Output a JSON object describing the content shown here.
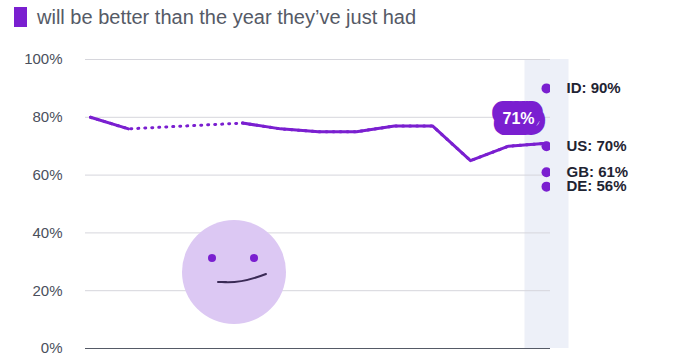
{
  "chart_data": {
    "type": "line",
    "subtitle": "will be better than the year they’ve just had",
    "categories": [
      null,
      null,
      null,
      null,
      null,
      null,
      null,
      null,
      null,
      null,
      null,
      null,
      null
    ],
    "values": [
      80,
      76,
      null,
      null,
      78,
      76,
      75,
      75,
      77,
      77,
      65,
      70,
      71
    ],
    "color": "#7a1fd0",
    "ylim": [
      0,
      100
    ],
    "yticks": [
      {
        "value": 0,
        "label": "0%"
      },
      {
        "value": 20,
        "label": "20%"
      },
      {
        "value": 40,
        "label": "40%"
      },
      {
        "value": 60,
        "label": "60%"
      },
      {
        "value": 80,
        "label": "80%"
      },
      {
        "value": 100,
        "label": "100%"
      }
    ],
    "grid": true,
    "tick_labels": "y",
    "annotations": [
      {
        "text": "71%",
        "value": 71
      }
    ],
    "points": [
      {
        "label": "ID: 90%",
        "value": 90
      },
      {
        "label": "US: 70%",
        "value": 70
      },
      {
        "label": "GB: 61%",
        "value": 61
      },
      {
        "label": "DE: 56%",
        "value": 56
      }
    ]
  }
}
